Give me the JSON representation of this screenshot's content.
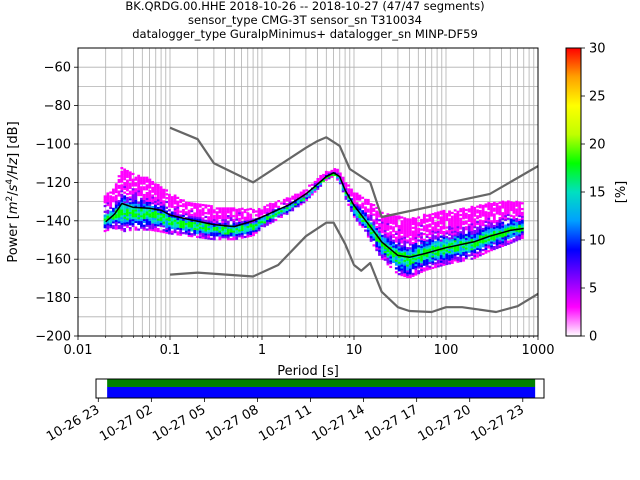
{
  "chart_data": {
    "type": "heatmap",
    "title_lines": [
      "BK.QRDG.00.HHE   2018-10-26 -- 2018-10-27  (47/47 segments)",
      "sensor_type CMG-3T sensor_sn T310034",
      "datalogger_type GuralpMinimus+ datalogger_sn MINP-DF59"
    ],
    "xlabel": "Period [s]",
    "ylabel_parts": [
      "Power [",
      "m",
      "2",
      "/",
      "s",
      "4",
      "/Hz",
      "] [dB]"
    ],
    "x_scale": "log",
    "xlim": [
      0.01,
      1000
    ],
    "ylim": [
      -200,
      -50
    ],
    "x_ticks": [
      {
        "v": 0.01,
        "label": "0.01"
      },
      {
        "v": 0.1,
        "label": "0.1"
      },
      {
        "v": 1,
        "label": "1"
      },
      {
        "v": 10,
        "label": "10"
      },
      {
        "v": 100,
        "label": "100"
      },
      {
        "v": 1000,
        "label": "1000"
      }
    ],
    "y_ticks": [
      {
        "v": -60,
        "label": "−60"
      },
      {
        "v": -80,
        "label": "−80"
      },
      {
        "v": -100,
        "label": "−100"
      },
      {
        "v": -120,
        "label": "−120"
      },
      {
        "v": -140,
        "label": "−140"
      },
      {
        "v": -160,
        "label": "−160"
      },
      {
        "v": -180,
        "label": "−180"
      },
      {
        "v": -200,
        "label": "−200"
      }
    ],
    "grid": true,
    "series": [
      {
        "color": "#666666",
        "points": [
          [
            0.1,
            -91.5
          ],
          [
            0.2,
            -97.5
          ],
          [
            0.3,
            -110
          ],
          [
            0.8,
            -120
          ],
          [
            3,
            -102
          ],
          [
            4,
            -98.5
          ],
          [
            5,
            -96.5
          ],
          [
            7,
            -101
          ],
          [
            9,
            -113
          ],
          [
            15,
            -120
          ],
          [
            20,
            -138
          ],
          [
            300,
            -126
          ],
          [
            1000,
            -111.5
          ]
        ]
      },
      {
        "color": "#666666",
        "points": [
          [
            0.1,
            -168
          ],
          [
            0.2,
            -167
          ],
          [
            0.8,
            -169
          ],
          [
            1.5,
            -163
          ],
          [
            3,
            -148
          ],
          [
            5,
            -141
          ],
          [
            6,
            -141
          ],
          [
            8,
            -152
          ],
          [
            10,
            -163
          ],
          [
            12,
            -166
          ],
          [
            15,
            -162
          ],
          [
            20,
            -177
          ],
          [
            30,
            -185
          ],
          [
            40,
            -187
          ],
          [
            70,
            -187.5
          ],
          [
            100,
            -185
          ],
          [
            150,
            -185
          ],
          [
            350,
            -187.5
          ],
          [
            600,
            -184.5
          ],
          [
            1000,
            -178
          ]
        ]
      },
      {
        "color": "#000000",
        "points": [
          [
            0.02,
            -140.5
          ],
          [
            0.025,
            -136.5
          ],
          [
            0.03,
            -131
          ],
          [
            0.04,
            -133
          ],
          [
            0.06,
            -133.5
          ],
          [
            0.08,
            -134.5
          ],
          [
            0.1,
            -137
          ],
          [
            0.15,
            -139
          ],
          [
            0.3,
            -142
          ],
          [
            0.5,
            -143
          ],
          [
            0.8,
            -140
          ],
          [
            1,
            -138
          ],
          [
            2,
            -131.5
          ],
          [
            3,
            -126
          ],
          [
            4,
            -121
          ],
          [
            5,
            -117
          ],
          [
            6,
            -115
          ],
          [
            7,
            -117
          ],
          [
            8,
            -124
          ],
          [
            10,
            -132
          ],
          [
            15,
            -143
          ],
          [
            20,
            -151
          ],
          [
            30,
            -158
          ],
          [
            40,
            -159
          ],
          [
            60,
            -157
          ],
          [
            100,
            -154
          ],
          [
            200,
            -151
          ],
          [
            300,
            -148
          ],
          [
            500,
            -145
          ],
          [
            700,
            -144
          ]
        ]
      }
    ],
    "heatmap_band": {
      "periods": [
        0.019,
        0.025,
        0.03,
        0.04,
        0.06,
        0.08,
        0.1,
        0.15,
        0.3,
        0.5,
        0.8,
        1,
        2,
        3,
        4,
        5,
        6,
        7,
        8,
        10,
        15,
        20,
        30,
        40,
        60,
        100,
        200,
        300,
        500,
        700
      ],
      "upper_db": [
        -128,
        -123,
        -112,
        -116,
        -118,
        -122,
        -126,
        -130,
        -133,
        -134,
        -134,
        -133,
        -128,
        -124,
        -118,
        -115,
        -113,
        -114,
        -120,
        -125,
        -130,
        -136,
        -138,
        -139,
        -137,
        -135,
        -133,
        -131,
        -130,
        -131
      ],
      "lower_db": [
        -146,
        -144,
        -146,
        -145,
        -145,
        -146,
        -147,
        -148,
        -150,
        -150,
        -148,
        -144,
        -136,
        -130,
        -124,
        -119,
        -117,
        -120,
        -128,
        -138,
        -150,
        -160,
        -168,
        -170,
        -166,
        -163,
        -160,
        -156,
        -152,
        -149
      ]
    },
    "colorbar": {
      "label": "[%]",
      "min": 0,
      "max": 30,
      "ticks": [
        {
          "v": 0,
          "label": "0"
        },
        {
          "v": 5,
          "label": "5"
        },
        {
          "v": 10,
          "label": "10"
        },
        {
          "v": 15,
          "label": "15"
        },
        {
          "v": 20,
          "label": "20"
        },
        {
          "v": 25,
          "label": "25"
        },
        {
          "v": 30,
          "label": "30"
        }
      ],
      "colors": [
        "#ffffff",
        "#ff00ff",
        "#8000ff",
        "#0000ff",
        "#00a0ff",
        "#00e0c0",
        "#00ff00",
        "#c0ff00",
        "#ffff00",
        "#ffa000",
        "#ff0000"
      ]
    },
    "time_axis": {
      "tick_labels": [
        "10-26 23",
        "10-27 02",
        "10-27 05",
        "10-27 08",
        "10-27 11",
        "10-27 14",
        "10-27 17",
        "10-27 20",
        "10-27 23"
      ],
      "tick_hours": [
        23,
        26,
        29,
        32,
        35,
        38,
        41,
        44,
        47
      ],
      "start_hour": 22.87,
      "end_hour": 48.2,
      "coverage_start_hour": 23.5,
      "coverage_end_hour": 47.7,
      "upper_color": "#008000",
      "lower_color": "#0000ff"
    }
  }
}
